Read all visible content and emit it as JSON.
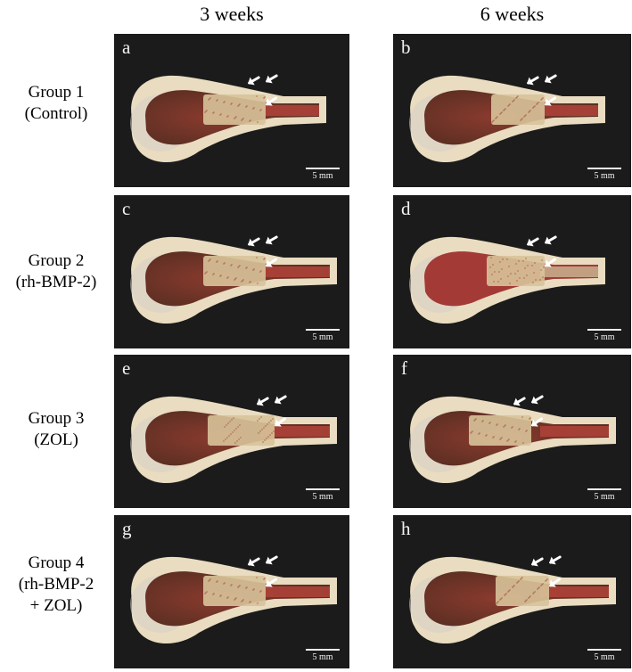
{
  "columns": [
    {
      "label": "3 weeks"
    },
    {
      "label": "6 weeks"
    }
  ],
  "rows": [
    {
      "lines": [
        "Group 1",
        "(Control)"
      ]
    },
    {
      "lines": [
        "Group 2",
        "(rh-BMP-2)"
      ]
    },
    {
      "lines": [
        "Group 3",
        "(ZOL)"
      ]
    },
    {
      "lines": [
        "Group 4",
        "(rh-BMP-2",
        "+ ZOL)"
      ]
    }
  ],
  "panels": [
    {
      "letter": "a"
    },
    {
      "letter": "b"
    },
    {
      "letter": "c"
    },
    {
      "letter": "d"
    },
    {
      "letter": "e"
    },
    {
      "letter": "f"
    },
    {
      "letter": "g"
    },
    {
      "letter": "h"
    }
  ],
  "scale_bar_label": "5 mm",
  "colors": {
    "background": "#1b1b1b",
    "bone": "#e9dcc0",
    "marrow": "#9a3a2e",
    "graft": "#d8c39a",
    "arrow": "#ffffff"
  }
}
